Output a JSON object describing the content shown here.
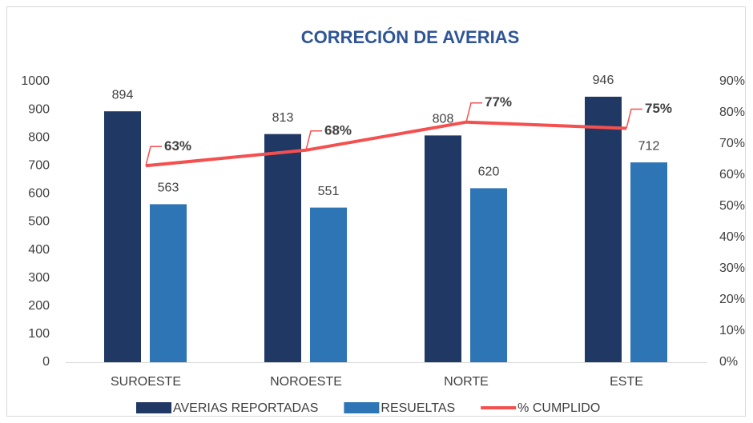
{
  "chart_data": {
    "type": "bar",
    "title": "CORRECIÓN DE AVERIAS",
    "categories": [
      "SUROESTE",
      "NOROESTE",
      "NORTE",
      "ESTE"
    ],
    "series": [
      {
        "name": "AVERIAS REPORTADAS",
        "color": "#1f3864",
        "type": "bar",
        "values": [
          894,
          813,
          808,
          946
        ]
      },
      {
        "name": "RESUELTAS",
        "color": "#2e75b6",
        "type": "bar",
        "values": [
          563,
          551,
          620,
          712
        ]
      },
      {
        "name": "% CUMPLIDO",
        "color": "#f4504f",
        "type": "line",
        "axis": "y2",
        "values": [
          63,
          68,
          77,
          75
        ],
        "value_labels": [
          "63%",
          "68%",
          "77%",
          "75%"
        ]
      }
    ],
    "ylim": [
      0,
      1000
    ],
    "yticks": [
      0,
      100,
      200,
      300,
      400,
      500,
      600,
      700,
      800,
      900,
      1000
    ],
    "y2lim": [
      0,
      90
    ],
    "y2ticks": [
      {
        "value": 0,
        "label": "0%"
      },
      {
        "value": 10,
        "label": "10%"
      },
      {
        "value": 20,
        "label": "20%"
      },
      {
        "value": 30,
        "label": "30%"
      },
      {
        "value": 40,
        "label": "40%"
      },
      {
        "value": 50,
        "label": "50%"
      },
      {
        "value": 60,
        "label": "60%"
      },
      {
        "value": 70,
        "label": "70%"
      },
      {
        "value": 80,
        "label": "80%"
      },
      {
        "value": 90,
        "label": "90%"
      }
    ],
    "legend": "bottom"
  }
}
